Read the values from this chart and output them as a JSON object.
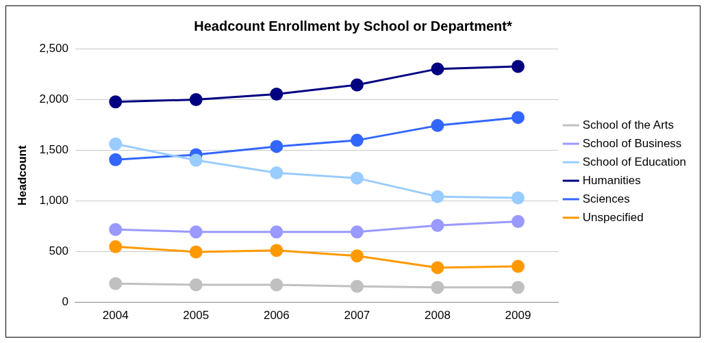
{
  "chart_data": {
    "type": "line",
    "title": "Headcount Enrollment by School or Department*",
    "ylabel": "Headcount",
    "categories": [
      "2004",
      "2005",
      "2006",
      "2007",
      "2008",
      "2009"
    ],
    "series": [
      {
        "name": "School of the Arts",
        "color": "#c0c0c0",
        "values": [
          185,
          173,
          173,
          158,
          148,
          148
        ]
      },
      {
        "name": "School of Business",
        "color": "#9999ff",
        "values": [
          718,
          694,
          694,
          694,
          758,
          797
        ]
      },
      {
        "name": "School of Education",
        "color": "#99ccff",
        "values": [
          1561,
          1400,
          1276,
          1224,
          1042,
          1030
        ]
      },
      {
        "name": "Humanities",
        "color": "#000080",
        "values": [
          1976,
          1997,
          2052,
          2142,
          2300,
          2324
        ]
      },
      {
        "name": "Sciences",
        "color": "#3366ff",
        "values": [
          1406,
          1455,
          1536,
          1597,
          1742,
          1821
        ]
      },
      {
        "name": "Unspecified",
        "color": "#ff9900",
        "values": [
          548,
          497,
          512,
          458,
          342,
          355
        ]
      }
    ],
    "ylim": [
      0,
      2500
    ],
    "yticks": [
      {
        "value": 0,
        "label": "0"
      },
      {
        "value": 500,
        "label": "500"
      },
      {
        "value": 1000,
        "label": "1,000"
      },
      {
        "value": 1500,
        "label": "1,500"
      },
      {
        "value": 2000,
        "label": "2,000"
      },
      {
        "value": 2500,
        "label": "2,500"
      }
    ],
    "grid": "y",
    "legend": "right",
    "marker": "circle",
    "line_style": "solid"
  }
}
